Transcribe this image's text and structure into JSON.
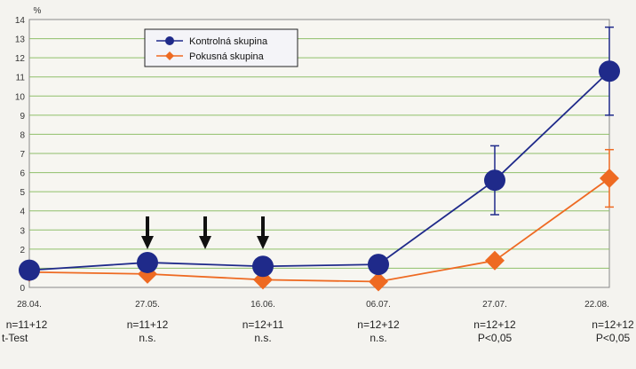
{
  "chart_data": {
    "type": "line",
    "ylabel": "%",
    "ylim": [
      0,
      14
    ],
    "yticks": [
      0,
      1,
      2,
      3,
      4,
      5,
      6,
      7,
      8,
      9,
      10,
      11,
      12,
      13,
      14
    ],
    "categories": [
      "28.04.",
      "27.05.",
      "16.06.",
      "06.07.",
      "27.07.",
      "22.08."
    ],
    "n_labels": [
      "n=11+12",
      "n=11+12",
      "n=12+11",
      "n=12+12",
      "n=12+12",
      "n=12+12"
    ],
    "test_labels": [
      "t-Test",
      "n.s.",
      "n.s.",
      "n.s.",
      "P<0,05",
      "P<0,05"
    ],
    "series": [
      {
        "name": "Kontrolná skupina",
        "color": "#1f2a8a",
        "marker": "circle",
        "values": [
          0.9,
          1.3,
          1.1,
          1.2,
          5.6,
          11.3
        ],
        "error": [
          null,
          null,
          null,
          null,
          1.8,
          2.3
        ]
      },
      {
        "name": "Pokusná skupina",
        "color": "#ee6a22",
        "marker": "diamond",
        "values": [
          0.8,
          0.7,
          0.4,
          0.3,
          1.4,
          5.7
        ],
        "error": [
          null,
          null,
          null,
          null,
          null,
          1.5
        ]
      }
    ],
    "arrow_positions": [
      1,
      1.5,
      2
    ],
    "grid": true,
    "legend_position": "top-left"
  }
}
